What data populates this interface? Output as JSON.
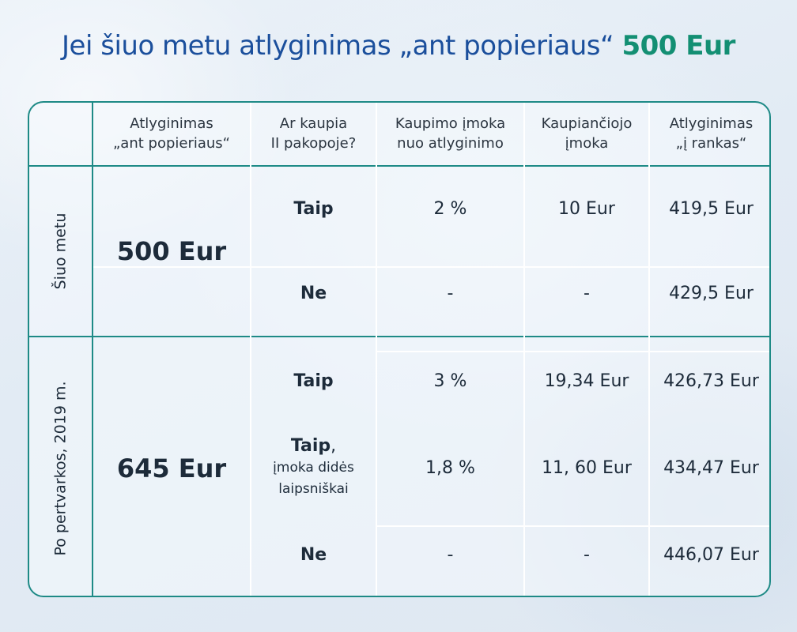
{
  "title": {
    "prefix": "Jei šiuo metu atlyginimas „ant popieriaus“",
    "amount": "500 Eur"
  },
  "headers": [
    [
      "Atlyginimas",
      "„ant popieriaus“"
    ],
    [
      "Ar kaupia",
      "II pakopoje?"
    ],
    [
      "Kaupimo įmoka",
      "nuo atlyginimo"
    ],
    [
      "Kaupiančiojo",
      "įmoka"
    ],
    [
      "Atlyginimas",
      "„į rankas“"
    ]
  ],
  "groups": [
    {
      "label": "Šiuo metu",
      "salary": "500 Eur",
      "rows": [
        {
          "answer": "Taip",
          "rate": "2 %",
          "contribution": "10 Eur",
          "net": "419,5 Eur"
        },
        {
          "answer": "Ne",
          "rate": "-",
          "contribution": "-",
          "net": "429,5 Eur"
        }
      ]
    },
    {
      "label": "Po pertvarkos, 2019 m.",
      "salary": "645 Eur",
      "rows": [
        {
          "answer": "Taip",
          "rate": "3 %",
          "contribution": "19,34 Eur",
          "net": "426,73 Eur"
        },
        {
          "answer": "Taip",
          "answer_suffix": ",",
          "answer_note_1": "įmoka didės",
          "answer_note_2": "laipsniškai",
          "rate": "1,8 %",
          "contribution": "11, 60 Eur",
          "net": "434,47 Eur"
        },
        {
          "answer": "Ne",
          "rate": "-",
          "contribution": "-",
          "net": "446,07 Eur"
        }
      ]
    }
  ],
  "colors": {
    "title": "#1b4f9c",
    "accent": "#138f73",
    "border": "#1e8a86"
  }
}
